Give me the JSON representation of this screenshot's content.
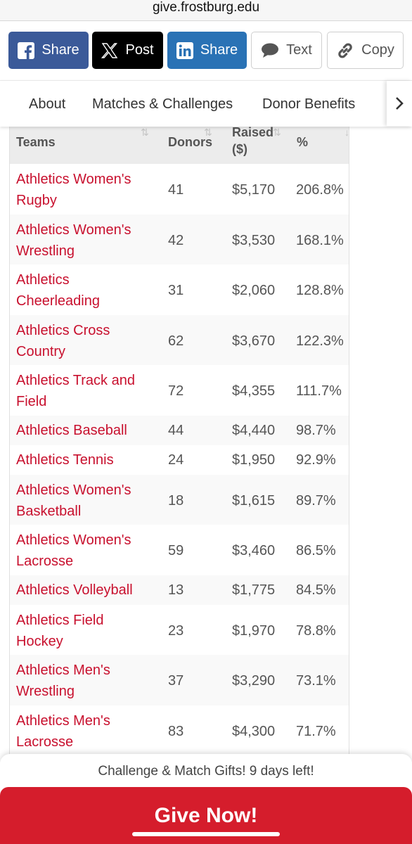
{
  "browser": {
    "url": "give.frostburg.edu"
  },
  "share": {
    "facebook_label": "Share",
    "x_label": "Post",
    "linkedin_label": "Share",
    "text_label": "Text",
    "copy_label": "Copy"
  },
  "nav": {
    "items": [
      "About",
      "Matches & Challenges",
      "Donor Benefits"
    ]
  },
  "table": {
    "headers": {
      "team": "Teams",
      "donors": "Donors",
      "raised_line1": "Raised",
      "raised_line2": "($)",
      "pct": "%"
    },
    "rows": [
      {
        "team_line1": "Athletics Women's",
        "team_line2": "Rugby",
        "donors": "41",
        "raised": "$5,170",
        "pct": "206.8%"
      },
      {
        "team_line1": "Athletics Women's",
        "team_line2": "Wrestling",
        "donors": "42",
        "raised": "$3,530",
        "pct": "168.1%"
      },
      {
        "team_line1": "Athletics",
        "team_line2": "Cheerleading",
        "donors": "31",
        "raised": "$2,060",
        "pct": "128.8%"
      },
      {
        "team_line1": "Athletics Cross",
        "team_line2": "Country",
        "donors": "62",
        "raised": "$3,670",
        "pct": "122.3%"
      },
      {
        "team_line1": "Athletics Track and",
        "team_line2": "Field",
        "donors": "72",
        "raised": "$4,355",
        "pct": "111.7%"
      },
      {
        "team_line1": "Athletics Baseball",
        "team_line2": "",
        "donors": "44",
        "raised": "$4,440",
        "pct": "98.7%"
      },
      {
        "team_line1": "Athletics Tennis",
        "team_line2": "",
        "donors": "24",
        "raised": "$1,950",
        "pct": "92.9%"
      },
      {
        "team_line1": "Athletics Women's",
        "team_line2": "Basketball",
        "donors": "18",
        "raised": "$1,615",
        "pct": "89.7%"
      },
      {
        "team_line1": "Athletics Women's",
        "team_line2": "Lacrosse",
        "donors": "59",
        "raised": "$3,460",
        "pct": "86.5%"
      },
      {
        "team_line1": "Athletics Volleyball",
        "team_line2": "",
        "donors": "13",
        "raised": "$1,775",
        "pct": "84.5%"
      },
      {
        "team_line1": "Athletics Field",
        "team_line2": "Hockey",
        "donors": "23",
        "raised": "$1,970",
        "pct": "78.8%"
      },
      {
        "team_line1": "Athletics Men's",
        "team_line2": "Wrestling",
        "donors": "37",
        "raised": "$3,290",
        "pct": "73.1%"
      },
      {
        "team_line1": "Athletics Men's",
        "team_line2": "Lacrosse",
        "donors": "83",
        "raised": "$4,300",
        "pct": "71.7%"
      }
    ]
  },
  "footer": {
    "banner_text": "Challenge & Match Gifts! 9 days left!",
    "give_label": "Give Now!"
  },
  "colors": {
    "team_link": "#c8102e",
    "give_button": "#d51d2c",
    "facebook": "#3b5a99",
    "linkedin": "#2a72b5"
  },
  "icons": [
    "facebook-icon",
    "x-icon",
    "linkedin-icon",
    "chat-bubble-icon",
    "link-icon",
    "chevron-right-icon",
    "sort-icon"
  ]
}
